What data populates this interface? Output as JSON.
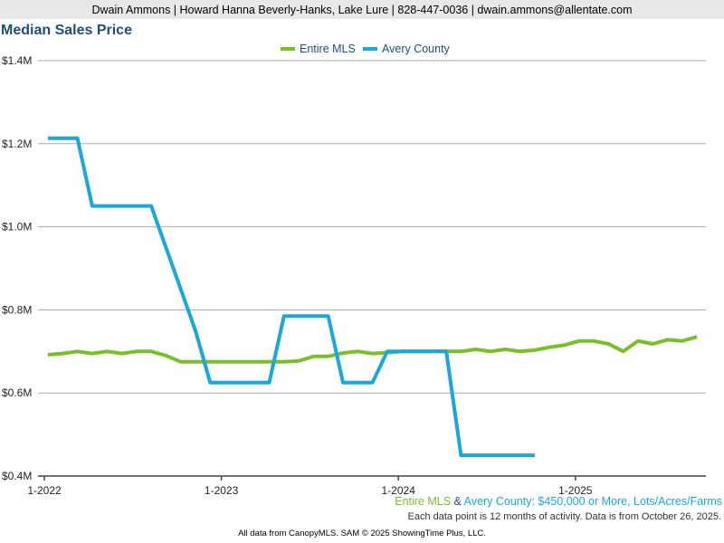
{
  "header": {
    "agent_info": "Dwain Ammons | Howard Hanna Beverly-Hanks, Lake Lure | 828-447-0036 | dwain.ammons@allentate.com"
  },
  "colors": {
    "entire_mls": "#7abf2a",
    "avery_county": "#1aa7dc",
    "title": "#1f4e79"
  },
  "notes": {
    "filter_series_1": "Entire MLS",
    "filter_join": " & ",
    "filter_series_2": "Avery County",
    "filter_rest": ": $450,000 or More, Lots/Acres/Farms",
    "activity": "Each data point is 12 months of activity. Data is from October 26, 2025."
  },
  "footer": "All data from CanopyMLS. SAM © 2025 ShowingTime Plus, LLC.",
  "chart_data": {
    "type": "line",
    "title": "Median Sales Price",
    "xlabel": "",
    "ylabel": "",
    "x_start": "1-2022",
    "x_ticks": [
      "1-2022",
      "1-2023",
      "1-2024",
      "1-2025"
    ],
    "y_ticks": [
      "$0.4M",
      "$0.6M",
      "$0.8M",
      "$1.0M",
      "$1.2M",
      "$1.4M"
    ],
    "ylim": [
      0.4,
      1.4
    ],
    "grid": true,
    "legend_position": "top",
    "series": [
      {
        "name": "Entire MLS",
        "values": [
          0.692,
          0.695,
          0.7,
          0.695,
          0.7,
          0.695,
          0.7,
          0.7,
          0.69,
          0.675,
          0.675,
          0.675,
          0.675,
          0.675,
          0.675,
          0.675,
          0.675,
          0.677,
          0.688,
          0.688,
          0.696,
          0.7,
          0.695,
          0.697,
          0.7,
          0.7,
          0.7,
          0.7,
          0.7,
          0.705,
          0.7,
          0.705,
          0.7,
          0.703,
          0.71,
          0.715,
          0.725,
          0.725,
          0.718,
          0.7,
          0.725,
          0.718,
          0.728,
          0.725,
          0.735
        ]
      },
      {
        "name": "Avery County",
        "values": [
          1.213,
          1.213,
          1.213,
          1.05,
          1.05,
          1.05,
          1.05,
          1.05,
          0.95,
          0.85,
          0.75,
          0.625,
          0.625,
          0.625,
          0.625,
          0.625,
          0.785,
          0.785,
          0.785,
          0.785,
          0.625,
          0.625,
          0.625,
          0.7,
          0.7,
          0.7,
          0.7,
          0.7,
          0.45,
          0.45,
          0.45,
          0.45,
          0.45,
          0.45
        ]
      }
    ]
  }
}
